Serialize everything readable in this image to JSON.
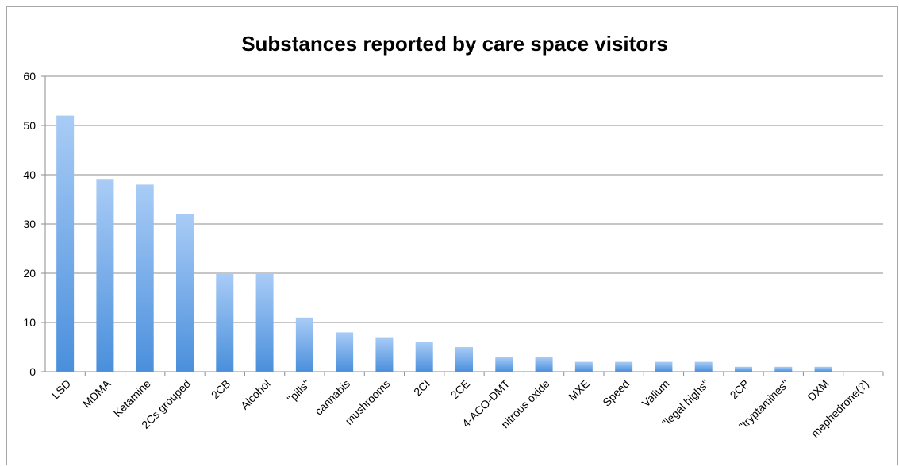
{
  "chart_data": {
    "type": "bar",
    "title": "Substances reported by care space visitors",
    "xlabel": "",
    "ylabel": "",
    "ylim": [
      0,
      60
    ],
    "yticks": [
      0,
      10,
      20,
      30,
      40,
      50,
      60
    ],
    "grid": true,
    "legend": "none",
    "categories": [
      "LSD",
      "MDMA",
      "Ketamine",
      "2Cs grouped",
      "2CB",
      "Alcohol",
      "\"pills\"",
      "cannabis",
      "mushrooms",
      "2CI",
      "2CE",
      "4-ACO-DMT",
      "nitrous oxide",
      "MXE",
      "Speed",
      "Valium",
      "\"legal highs\"",
      "2CP",
      "\"tryptamines\"",
      "DXM",
      "mephedrone(?)"
    ],
    "values": [
      52,
      39,
      38,
      32,
      20,
      20,
      11,
      8,
      7,
      6,
      5,
      3,
      3,
      2,
      2,
      2,
      2,
      1,
      1,
      1,
      0
    ],
    "colors": {
      "bar_top": "#a9ccf6",
      "bar_bottom": "#4a8fdc",
      "grid": "#8c8c8c",
      "axis": "#8c8c8c"
    }
  }
}
